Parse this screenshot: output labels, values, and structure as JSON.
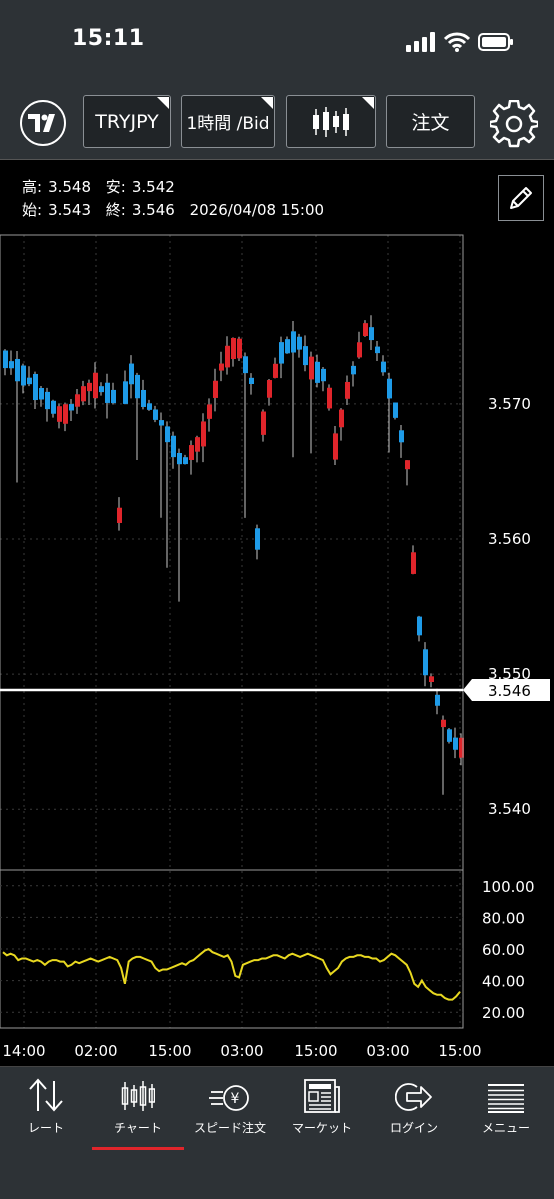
{
  "status": {
    "time": "15:11"
  },
  "toolbar": {
    "symbol": "TRYJPY",
    "timeframe": "1時間 /Bid",
    "order_label": "注文"
  },
  "ohlc": {
    "high_label": "高:",
    "high": "3.548",
    "low_label": "安:",
    "low": "3.542",
    "open_label": "始:",
    "open": "3.543",
    "close_label": "終:",
    "close": "3.546",
    "datetime": "2026/04/08 15:00"
  },
  "chart_data": {
    "type": "candlestick",
    "y_axis": {
      "ticks": [
        "3.570",
        "3.560",
        "3.550",
        "3.540"
      ],
      "range": [
        3.5355,
        3.5825
      ]
    },
    "current_price": "3.546",
    "x_axis": {
      "ticks": [
        "14:00",
        "02:00",
        "15:00",
        "03:00",
        "15:00",
        "03:00",
        "15:00"
      ]
    },
    "colors": {
      "up": "#e0252b",
      "down": "#1e9be8",
      "current_line": "#ffffff",
      "oscillator": "#e8d820"
    },
    "oscillator": {
      "ticks": [
        "100.00",
        "80.00",
        "60.00",
        "40.00",
        "20.00"
      ],
      "range": [
        10,
        110
      ],
      "values": [
        58,
        56,
        57,
        56,
        53,
        54,
        54,
        53,
        52,
        53,
        52,
        50,
        52,
        53,
        53,
        52,
        52,
        49,
        50,
        52,
        51,
        52,
        53,
        54,
        53,
        52,
        53,
        54,
        55,
        54,
        53,
        48,
        38,
        52,
        54,
        55,
        55,
        54,
        53,
        52,
        48,
        46,
        47,
        47,
        48,
        49,
        50,
        51,
        50,
        52,
        53,
        55,
        57,
        59,
        60,
        58,
        57,
        56,
        55,
        56,
        52,
        43,
        42,
        50,
        51,
        52,
        53,
        53,
        54,
        54,
        55,
        56,
        56,
        55,
        54,
        56,
        57,
        56,
        55,
        56,
        57,
        56,
        55,
        54,
        53,
        48,
        44,
        46,
        48,
        52,
        54,
        55,
        55,
        56,
        56,
        55,
        55,
        54,
        54,
        52,
        53,
        55,
        57,
        56,
        54,
        52,
        50,
        45,
        38,
        36,
        40,
        36,
        34,
        32,
        31,
        31,
        29,
        28,
        28,
        30,
        33
      ]
    }
  },
  "nav": {
    "items": [
      {
        "label": "レート"
      },
      {
        "label": "チャート"
      },
      {
        "label": "スピード注文"
      },
      {
        "label": "マーケット"
      },
      {
        "label": "ログイン"
      },
      {
        "label": "メニュー"
      }
    ]
  }
}
